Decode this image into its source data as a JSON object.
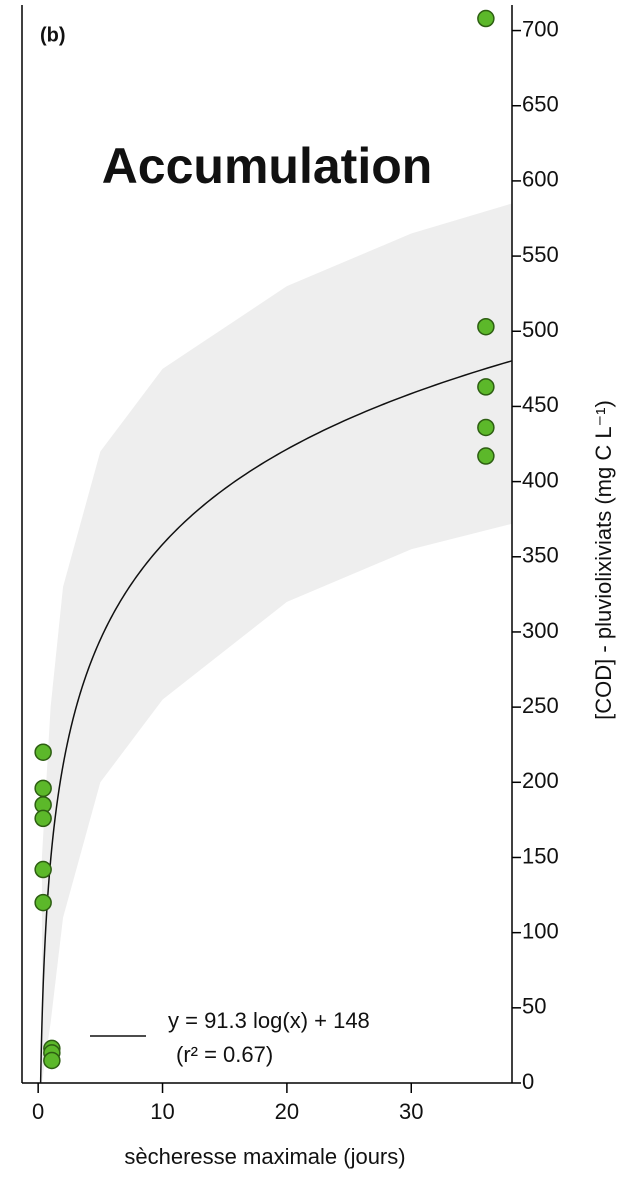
{
  "chart_data": {
    "type": "scatter",
    "title": "Accumulation",
    "panel_label": "(b)",
    "x_label": "sècheresse maximale (jours)",
    "y_label": "[COD] - pluviolixiviats (mg C L⁻¹)",
    "x": [
      36,
      36,
      36,
      36,
      36,
      0.4,
      0.4,
      0.4,
      0.4,
      0.4,
      0.4,
      1.1,
      1.1,
      1.1
    ],
    "values": [
      708,
      503,
      463,
      436,
      417,
      220,
      196,
      185,
      176,
      142,
      120,
      23,
      20,
      15
    ],
    "color": "#5cb82a",
    "fit": {
      "label": "y = 91.3 log(x) + 148",
      "r2_label": "(r² = 0.67)",
      "slope": 91.3,
      "intercept": 148,
      "color": "#111111"
    },
    "band": {
      "x": [
        0.3,
        1,
        2,
        5,
        10,
        20,
        30,
        38.1
      ],
      "upper": [
        150,
        250,
        330,
        420,
        475,
        530,
        565,
        585
      ],
      "lower": [
        0,
        40,
        110,
        200,
        255,
        320,
        355,
        372
      ],
      "color": "#eeeeee"
    },
    "xlim": [
      -1.3,
      38.1
    ],
    "ylim": [
      0,
      717
    ],
    "xticks": [
      0,
      10,
      20,
      30
    ],
    "yticks": [
      0,
      50,
      100,
      150,
      200,
      250,
      300,
      350,
      400,
      450,
      500,
      550,
      600,
      650,
      700
    ]
  }
}
